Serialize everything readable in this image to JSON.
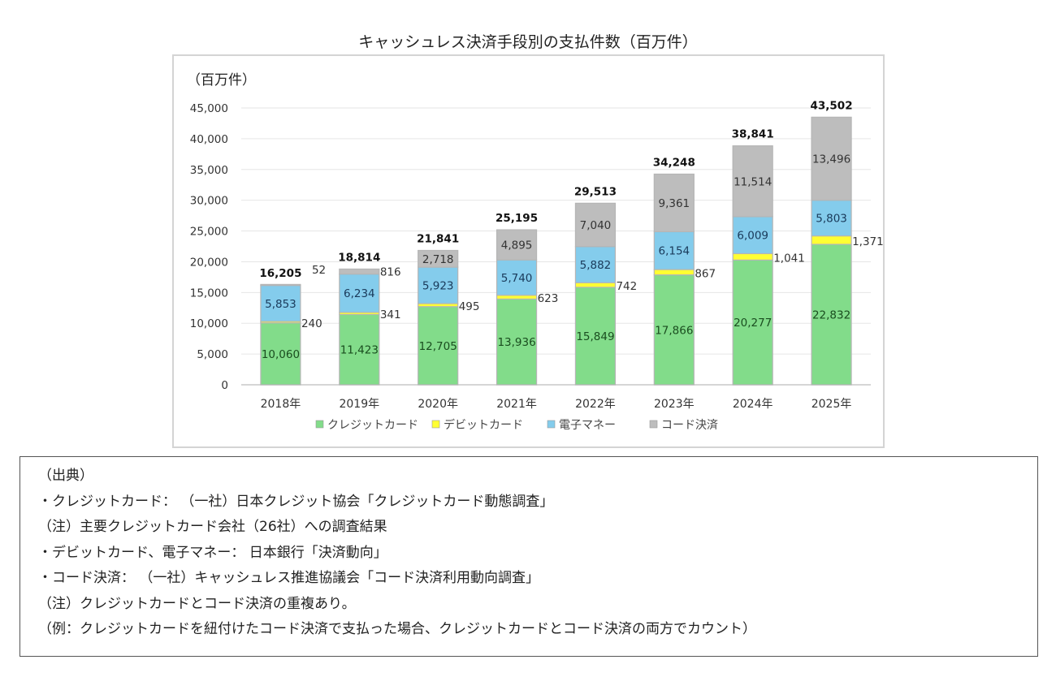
{
  "page_title": "キャッシュレス決済手段別の支払件数（百万件）",
  "chart_data": {
    "type": "bar",
    "stacked": true,
    "title": "キャッシュレス決済手段別の支払件数（百万件）",
    "unit_label": "（百万件）",
    "xlabel": "",
    "ylabel": "（百万件）",
    "categories": [
      "2018年",
      "2019年",
      "2020年",
      "2021年",
      "2022年",
      "2023年",
      "2024年",
      "2025年"
    ],
    "ylim": [
      0,
      45000
    ],
    "yticks": [
      0,
      5000,
      10000,
      15000,
      20000,
      25000,
      30000,
      35000,
      40000,
      45000
    ],
    "ytick_labels": [
      "0",
      "5,000",
      "10,000",
      "15,000",
      "20,000",
      "25,000",
      "30,000",
      "35,000",
      "40,000",
      "45,000"
    ],
    "grid": true,
    "legend_position": "bottom",
    "series": [
      {
        "name": "クレジットカード",
        "color": "#82dc8a",
        "label_color": "#1a4d1f",
        "values": [
          10060,
          11423,
          12705,
          13936,
          15849,
          17866,
          20277,
          22832
        ],
        "labels": [
          "10,060",
          "11,423",
          "12,705",
          "13,936",
          "15,849",
          "17,866",
          "20,277",
          "22,832"
        ],
        "label_pos": "inside"
      },
      {
        "name": "デビットカード",
        "color": "#ffff33",
        "label_color": "#333333",
        "values": [
          240,
          341,
          495,
          623,
          742,
          867,
          1041,
          1371
        ],
        "labels": [
          "240",
          "341",
          "495",
          "623",
          "742",
          "867",
          "1,041",
          "1,371"
        ],
        "label_pos": "right"
      },
      {
        "name": "電子マネー",
        "color": "#84ccec",
        "label_color": "#1a3a5a",
        "values": [
          5853,
          6234,
          5923,
          5740,
          5882,
          6154,
          6009,
          5803
        ],
        "labels": [
          "5,853",
          "6,234",
          "5,923",
          "5,740",
          "5,882",
          "6,154",
          "6,009",
          "5,803"
        ],
        "label_pos": "inside"
      },
      {
        "name": "コード決済",
        "color": "#bdbdbd",
        "label_color": "#333333",
        "values": [
          52,
          816,
          2718,
          4895,
          7040,
          9361,
          11514,
          13496
        ],
        "labels": [
          "52",
          "816",
          "2,718",
          "4,895",
          "7,040",
          "9,361",
          "11,514",
          "13,496"
        ],
        "label_pos": "mixed"
      }
    ],
    "totals": [
      16205,
      18814,
      21841,
      25195,
      29513,
      34248,
      38841,
      43502
    ],
    "total_labels": [
      "16,205",
      "18,814",
      "21,841",
      "25,195",
      "29,513",
      "34,248",
      "38,841",
      "43,502"
    ]
  },
  "notes": [
    "（出典）",
    "・クレジットカード： （一社）日本クレジット協会「クレジットカード動態調査」",
    "（注）主要クレジットカード会社（26社）への調査結果",
    "・デビットカード、電子マネー： 日本銀行「決済動向」",
    "・コード決済： （一社）キャッシュレス推進協議会「コード決済利用動向調査」",
    "（注）クレジットカードとコード決済の重複あり。",
    "（例：クレジットカードを紐付けたコード決済で支払った場合、クレジットカードとコード決済の両方でカウント）"
  ]
}
